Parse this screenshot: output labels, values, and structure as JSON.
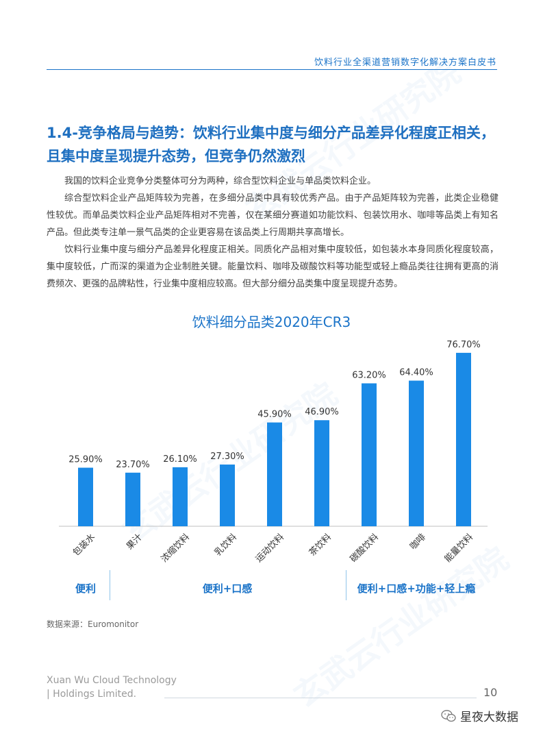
{
  "header": {
    "title": "饮料行业全渠道营销数字化解决方案白皮书"
  },
  "section": {
    "heading": "1.4-竞争格局与趋势：饮料行业集中度与细分产品差异化程度正相关，且集中度呈现提升态势，但竞争仍然激烈",
    "paragraphs": [
      "我国的饮料企业竞争分类整体可分为两种，综合型饮料企业与单品类饮料企业。",
      "综合型饮料企业产品矩阵较为完善，在多细分品类中具有较优秀产品。由于产品矩阵较为完善，此类企业稳健性较优。而单品类饮料企业产品矩阵相对不完善，仅在某细分赛道如功能饮料、包装饮用水、咖啡等品类上有知名产品。但此类专注单一景气品类的企业更容易在该品类上行周期共享高增长。",
      "饮料行业集中度与细分产品差异化程度正相关。同质化产品相对集中度较低，如包装水本身同质化程度较高，集中度较低，广而深的渠道为企业制胜关键。能量饮料、咖啡及碳酸饮料等功能型或轻上瘾品类往往拥有更高的消费频次、更强的品牌粘性，行业集中度相应较高。但大部分细分品类集中度呈现提升态势。"
    ]
  },
  "chart_data": {
    "type": "bar",
    "title": "饮料细分品类2020年CR3",
    "categories": [
      "包装水",
      "果汁",
      "浓缩饮料",
      "乳饮料",
      "运动饮料",
      "茶饮料",
      "碳酸饮料",
      "咖啡",
      "能量饮料"
    ],
    "values": [
      25.9,
      23.7,
      26.1,
      27.3,
      45.9,
      46.9,
      63.2,
      64.4,
      76.7
    ],
    "value_labels": [
      "25.90%",
      "23.70%",
      "26.10%",
      "27.30%",
      "45.90%",
      "46.90%",
      "63.20%",
      "64.40%",
      "76.70%"
    ],
    "ylim": [
      0,
      80
    ],
    "grid": false,
    "bar_color": "#1a8ae6",
    "groups": [
      {
        "label": "便利",
        "from": 0,
        "to": 0
      },
      {
        "label": "便利+口感",
        "from": 1,
        "to": 5
      },
      {
        "label": "便利+口感+功能+轻上瘾",
        "from": 6,
        "to": 8
      }
    ]
  },
  "source": "数据来源：Euromonitor",
  "footer": {
    "company_line1": "Xuan Wu Cloud Technology",
    "company_line2": "| Holdings Limited.",
    "page_number": "10",
    "wechat_label": "星夜大数据"
  }
}
